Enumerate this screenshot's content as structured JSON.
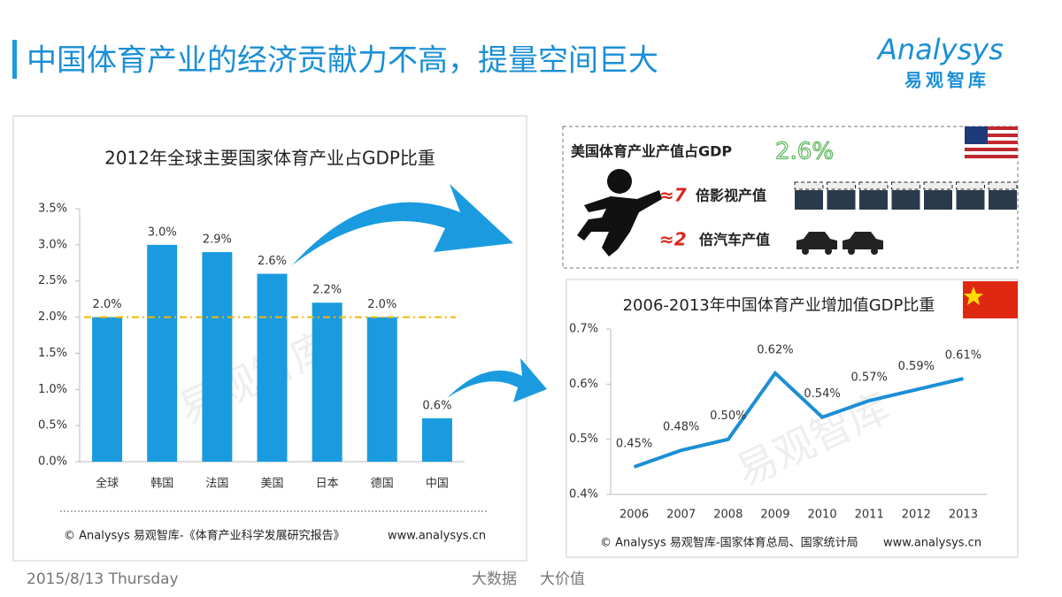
{
  "header": {
    "title": "中国体育产业的经济贡献力不高，提量空间巨大",
    "logo": "Analysys",
    "logo_sub": "易观智库"
  },
  "chart_data": [
    {
      "type": "bar",
      "title": "2012年全球主要国家体育产业占GDP比重",
      "categories": [
        "全球",
        "韩国",
        "法国",
        "美国",
        "日本",
        "德国",
        "中国"
      ],
      "values": [
        2.0,
        3.0,
        2.9,
        2.6,
        2.2,
        2.0,
        0.6
      ],
      "value_labels": [
        "2.0%",
        "3.0%",
        "2.9%",
        "2.6%",
        "2.2%",
        "2.0%",
        "0.6%"
      ],
      "color": "#1a9be0",
      "reference_line": {
        "value": 2.0,
        "color": "#f2b705"
      },
      "ylim": [
        0,
        3.5
      ],
      "yticks": [
        {
          "value": 0,
          "label": "0.0%"
        },
        {
          "value": 0.5,
          "label": "0.5%"
        },
        {
          "value": 1,
          "label": "1.0%"
        },
        {
          "value": 1.5,
          "label": "1.5%"
        },
        {
          "value": 2,
          "label": "2.0%"
        },
        {
          "value": 2.5,
          "label": "2.5%"
        },
        {
          "value": 3,
          "label": "3.0%"
        },
        {
          "value": 3.5,
          "label": "3.5%"
        }
      ],
      "watermark": "易观智库",
      "source": "© Analysys 易观智库-《体育产业科学发展研究报告》",
      "website": "www.analysys.cn"
    },
    {
      "type": "line",
      "title": "2006-2013年中国体育产业增加值GDP比重",
      "categories": [
        "2006",
        "2007",
        "2008",
        "2009",
        "2010",
        "2011",
        "2012",
        "2013"
      ],
      "values": [
        0.45,
        0.48,
        0.5,
        0.62,
        0.54,
        0.57,
        0.59,
        0.61
      ],
      "value_labels": [
        "0.45%",
        "0.48%",
        "0.50%",
        "0.62%",
        "0.54%",
        "0.57%",
        "0.59%",
        "0.61%"
      ],
      "color": "#1b8fd6",
      "ylim": [
        0.4,
        0.7
      ],
      "yticks": [
        {
          "value": 0.4,
          "label": "0.4%"
        },
        {
          "value": 0.5,
          "label": "0.5%"
        },
        {
          "value": 0.6,
          "label": "0.6%"
        },
        {
          "value": 0.7,
          "label": "0.7%"
        }
      ],
      "watermark": "易观智库",
      "source": "© Analysys 易观智库-国家体育总局、国家统计局",
      "website": "www.analysys.cn"
    }
  ],
  "callout": {
    "text": "美国体育产业产值占GDP",
    "value": "2.6%",
    "items": [
      {
        "multiple": "≈7",
        "text": "倍影视产值"
      },
      {
        "multiple": "≈2",
        "text": "倍汽车产值"
      }
    ]
  },
  "footer": {
    "date": "2015/8/13 Thursday",
    "slogan": [
      "大数据",
      "大价值"
    ]
  }
}
